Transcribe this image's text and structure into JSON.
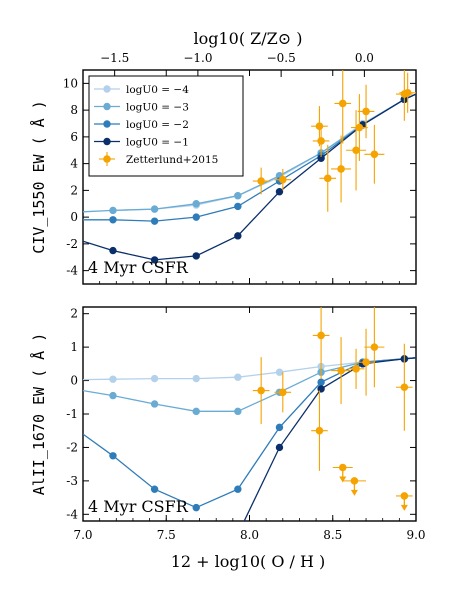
{
  "chart_data": [
    {
      "type": "line",
      "panel": "top",
      "xlabel": "12 + log10( O / H )",
      "ylabel": "CIV_1550 EW ( Å )",
      "top_xlabel": "log10( Z/Z⊙ )",
      "note": "4 Myr CSFR",
      "xlim": [
        7.0,
        9.0
      ],
      "ylim": [
        -5,
        11
      ],
      "x_ticks": [
        "7.0",
        "7.5",
        "8.0",
        "8.5",
        "9.0"
      ],
      "y_ticks": [
        "-4",
        "-2",
        "0",
        "2",
        "4",
        "6",
        "8",
        "10"
      ],
      "top_ticks": [
        "−1.5",
        "−1.0",
        "−0.5",
        "0.0"
      ],
      "legend_position": "upper-left",
      "series": [
        {
          "name": "logU0 = −4",
          "color": "#b3d1ea",
          "x": [
            7.18,
            7.43,
            7.68,
            7.93,
            8.18,
            8.43,
            8.68,
            8.93,
            9.0
          ],
          "y": [
            0.5,
            0.6,
            0.9,
            1.6,
            3.0,
            4.8,
            7.0,
            8.8,
            9.2
          ]
        },
        {
          "name": "logU0 = −3",
          "color": "#6aabd4",
          "x": [
            7.0,
            7.18,
            7.43,
            7.68,
            7.93,
            8.18,
            8.43,
            8.68,
            8.93,
            9.0
          ],
          "y": [
            0.4,
            0.5,
            0.6,
            1.0,
            1.6,
            3.1,
            4.8,
            6.9,
            8.8,
            9.2
          ]
        },
        {
          "name": "logU0 = −2",
          "color": "#2f7cba",
          "x": [
            7.0,
            7.18,
            7.43,
            7.68,
            7.93,
            8.18,
            8.43,
            8.68,
            8.93,
            9.0
          ],
          "y": [
            -0.2,
            -0.2,
            -0.3,
            0.0,
            0.8,
            2.7,
            4.6,
            6.9,
            8.8,
            9.2
          ]
        },
        {
          "name": "logU0 = −1",
          "color": "#0b2f6b",
          "x": [
            7.0,
            7.18,
            7.43,
            7.68,
            7.93,
            8.18,
            8.43,
            8.68,
            8.93,
            9.0
          ],
          "y": [
            -1.8,
            -2.5,
            -3.2,
            -2.9,
            -1.4,
            1.9,
            4.4,
            6.9,
            8.8,
            9.2
          ]
        }
      ],
      "observations": {
        "name": "Zetterlund+2015",
        "color": "#f5a300",
        "points": [
          {
            "x": 8.07,
            "y": 2.7,
            "xerr": 0.05,
            "yerr": 1.0
          },
          {
            "x": 8.2,
            "y": 2.8,
            "xerr": 0.05,
            "yerr": 0.8
          },
          {
            "x": 8.42,
            "y": 6.8,
            "xerr": 0.05,
            "yerr": 1.5
          },
          {
            "x": 8.43,
            "y": 5.7,
            "xerr": 0.05,
            "yerr": 1.2
          },
          {
            "x": 8.47,
            "y": 2.9,
            "xerr": 0.05,
            "yerr": 2.5
          },
          {
            "x": 8.55,
            "y": 3.6,
            "xerr": 0.06,
            "yerr": 2.5
          },
          {
            "x": 8.56,
            "y": 8.5,
            "xerr": 0.05,
            "yerr": 3.0
          },
          {
            "x": 8.64,
            "y": 5.0,
            "xerr": 0.06,
            "yerr": 3.0
          },
          {
            "x": 8.66,
            "y": 6.7,
            "xerr": 0.05,
            "yerr": 2.5
          },
          {
            "x": 8.7,
            "y": 7.9,
            "xerr": 0.05,
            "yerr": 2.0
          },
          {
            "x": 8.75,
            "y": 4.7,
            "xerr": 0.06,
            "yerr": 2.2
          },
          {
            "x": 8.93,
            "y": 9.2,
            "xerr": 0.05,
            "yerr": 2.0
          },
          {
            "x": 8.95,
            "y": 9.3,
            "xerr": 0.05,
            "yerr": 1.5
          }
        ]
      }
    },
    {
      "type": "line",
      "panel": "bottom",
      "xlabel": "12 + log10( O / H )",
      "ylabel": "AlII_1670 EW ( Å )",
      "note": "4 Myr CSFR",
      "xlim": [
        7.0,
        9.0
      ],
      "ylim": [
        -4.2,
        2.2
      ],
      "x_ticks": [
        "7.0",
        "7.5",
        "8.0",
        "8.5",
        "9.0"
      ],
      "y_ticks": [
        "-4",
        "-3",
        "-2",
        "-1",
        "0",
        "1",
        "2"
      ],
      "series": [
        {
          "name": "logU0 = −4",
          "color": "#b3d1ea",
          "x": [
            7.0,
            7.18,
            7.43,
            7.68,
            7.93,
            8.18,
            8.43,
            8.68,
            8.93,
            9.0
          ],
          "y": [
            0.03,
            0.04,
            0.06,
            0.06,
            0.1,
            0.25,
            0.42,
            0.55,
            0.65,
            0.68
          ]
        },
        {
          "name": "logU0 = −3",
          "color": "#6aabd4",
          "x": [
            7.0,
            7.18,
            7.43,
            7.68,
            7.93,
            8.18,
            8.43,
            8.68,
            8.93,
            9.0
          ],
          "y": [
            -0.3,
            -0.45,
            -0.7,
            -0.92,
            -0.92,
            -0.35,
            0.25,
            0.55,
            0.65,
            0.68
          ]
        },
        {
          "name": "logU0 = −2",
          "color": "#2f7cba",
          "x": [
            7.0,
            7.18,
            7.43,
            7.68,
            7.93,
            8.18,
            8.43,
            8.68,
            8.93,
            9.0
          ],
          "y": [
            -1.6,
            -2.25,
            -3.25,
            -3.8,
            -3.25,
            -1.4,
            -0.05,
            0.55,
            0.65,
            0.68
          ]
        },
        {
          "name": "logU0 = −1",
          "color": "#0b2f6b",
          "x": [
            7.68,
            7.93,
            8.18,
            8.43,
            8.68,
            8.93,
            9.0
          ],
          "y": [
            -5.0,
            -4.6,
            -2.0,
            -0.25,
            0.5,
            0.65,
            0.68
          ]
        }
      ],
      "observations": {
        "name": "Zetterlund+2015",
        "color": "#f5a300",
        "points": [
          {
            "x": 8.07,
            "y": -0.3,
            "xerr": 0.05,
            "yerr": 1.0
          },
          {
            "x": 8.2,
            "y": -0.35,
            "xerr": 0.05,
            "yerr": 0.6
          },
          {
            "x": 8.42,
            "y": -1.5,
            "xerr": 0.05,
            "yerr": 1.2
          },
          {
            "x": 8.43,
            "y": 1.35,
            "xerr": 0.05,
            "yerr": 1.3
          },
          {
            "x": 8.55,
            "y": 0.3,
            "xerr": 0.06,
            "yerr": 1.0
          },
          {
            "x": 8.64,
            "y": 0.35,
            "xerr": 0.05,
            "yerr": 0.6
          },
          {
            "x": 8.7,
            "y": 0.55,
            "xerr": 0.05,
            "yerr": 1.0
          },
          {
            "x": 8.75,
            "y": 1.0,
            "xerr": 0.06,
            "yerr": 1.2
          },
          {
            "x": 8.93,
            "y": -0.2,
            "xerr": 0.05,
            "yerr": 1.3
          }
        ],
        "upper_limits": [
          {
            "x": 8.56,
            "y": -2.6,
            "xerr": 0.06
          },
          {
            "x": 8.63,
            "y": -3.0,
            "xerr": 0.07
          },
          {
            "x": 8.93,
            "y": -3.45,
            "xerr": 0.05
          }
        ]
      }
    }
  ]
}
